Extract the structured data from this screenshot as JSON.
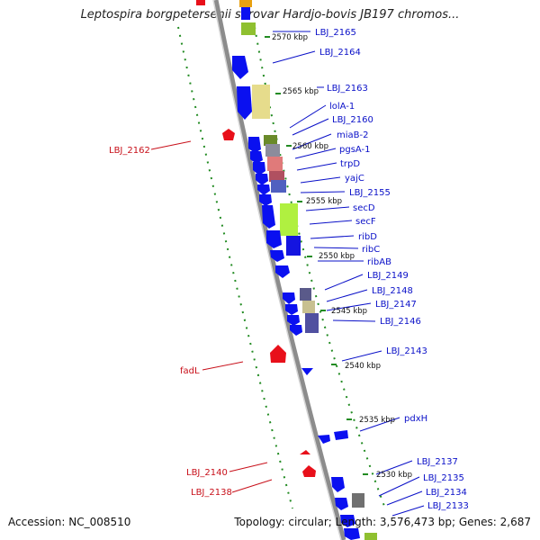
{
  "header": {
    "title": "Leptospira borgpetersenii serovar Hardjo-bovis JB197 chromos..."
  },
  "footer": {
    "accession": "Accession: NC_008510",
    "topology": "Topology: circular; Length: 3,576,473 bp; Genes: 2,687"
  },
  "colors": {
    "forward_gene": "#0a10f0",
    "reverse_gene": "#e8101a",
    "forward_label": "#0a10c8",
    "reverse_label": "#c8101a",
    "tick": "#228b22",
    "backbone": "#8c8c8c"
  },
  "kbp_ticks": [
    "2570 kbp",
    "2565 kbp",
    "2560 kbp",
    "2555 kbp",
    "2550 kbp",
    "2545 kbp",
    "2540 kbp",
    "2535 kbp",
    "2530 kbp"
  ],
  "forward_genes": [
    "LBJ_2165",
    "LBJ_2164",
    "LBJ_2163",
    "lolA-1",
    "LBJ_2160",
    "miaB-2",
    "pgsA-1",
    "trpD",
    "yajC",
    "LBJ_2155",
    "secD",
    "secF",
    "ribD",
    "ribC",
    "ribAB",
    "LBJ_2149",
    "LBJ_2148",
    "LBJ_2147",
    "LBJ_2146",
    "LBJ_2143",
    "pdxH",
    "LBJ_2137",
    "LBJ_2135",
    "LBJ_2134",
    "LBJ_2133"
  ],
  "reverse_genes": [
    "LBJ_2162",
    "fadL",
    "LBJ_2140",
    "LBJ_2138"
  ]
}
